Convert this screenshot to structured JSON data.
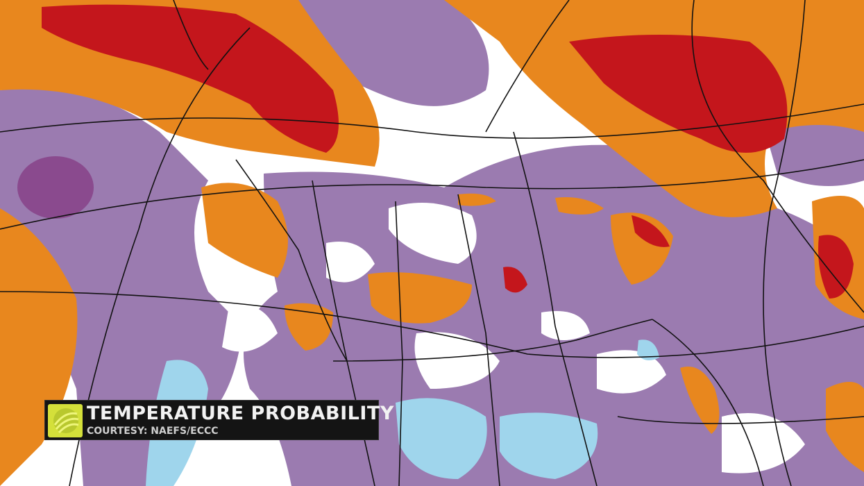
{
  "caption": {
    "title": "TEMPERATURE PROBABILITY",
    "credit": "COURTESY: NAEFS/ECCC",
    "logo_icon": "sun-swirl-logo-icon"
  },
  "colors": {
    "above_strong": "#c4161c",
    "above": "#e8871e",
    "near_normal": "#ffffff",
    "below": "#9b7bb0",
    "below_strong": "#8a4a8e",
    "well_below": "#9fd5ec",
    "boundaries": "#111111",
    "caption_bg": "#141414",
    "logo": "#d4e03a"
  }
}
